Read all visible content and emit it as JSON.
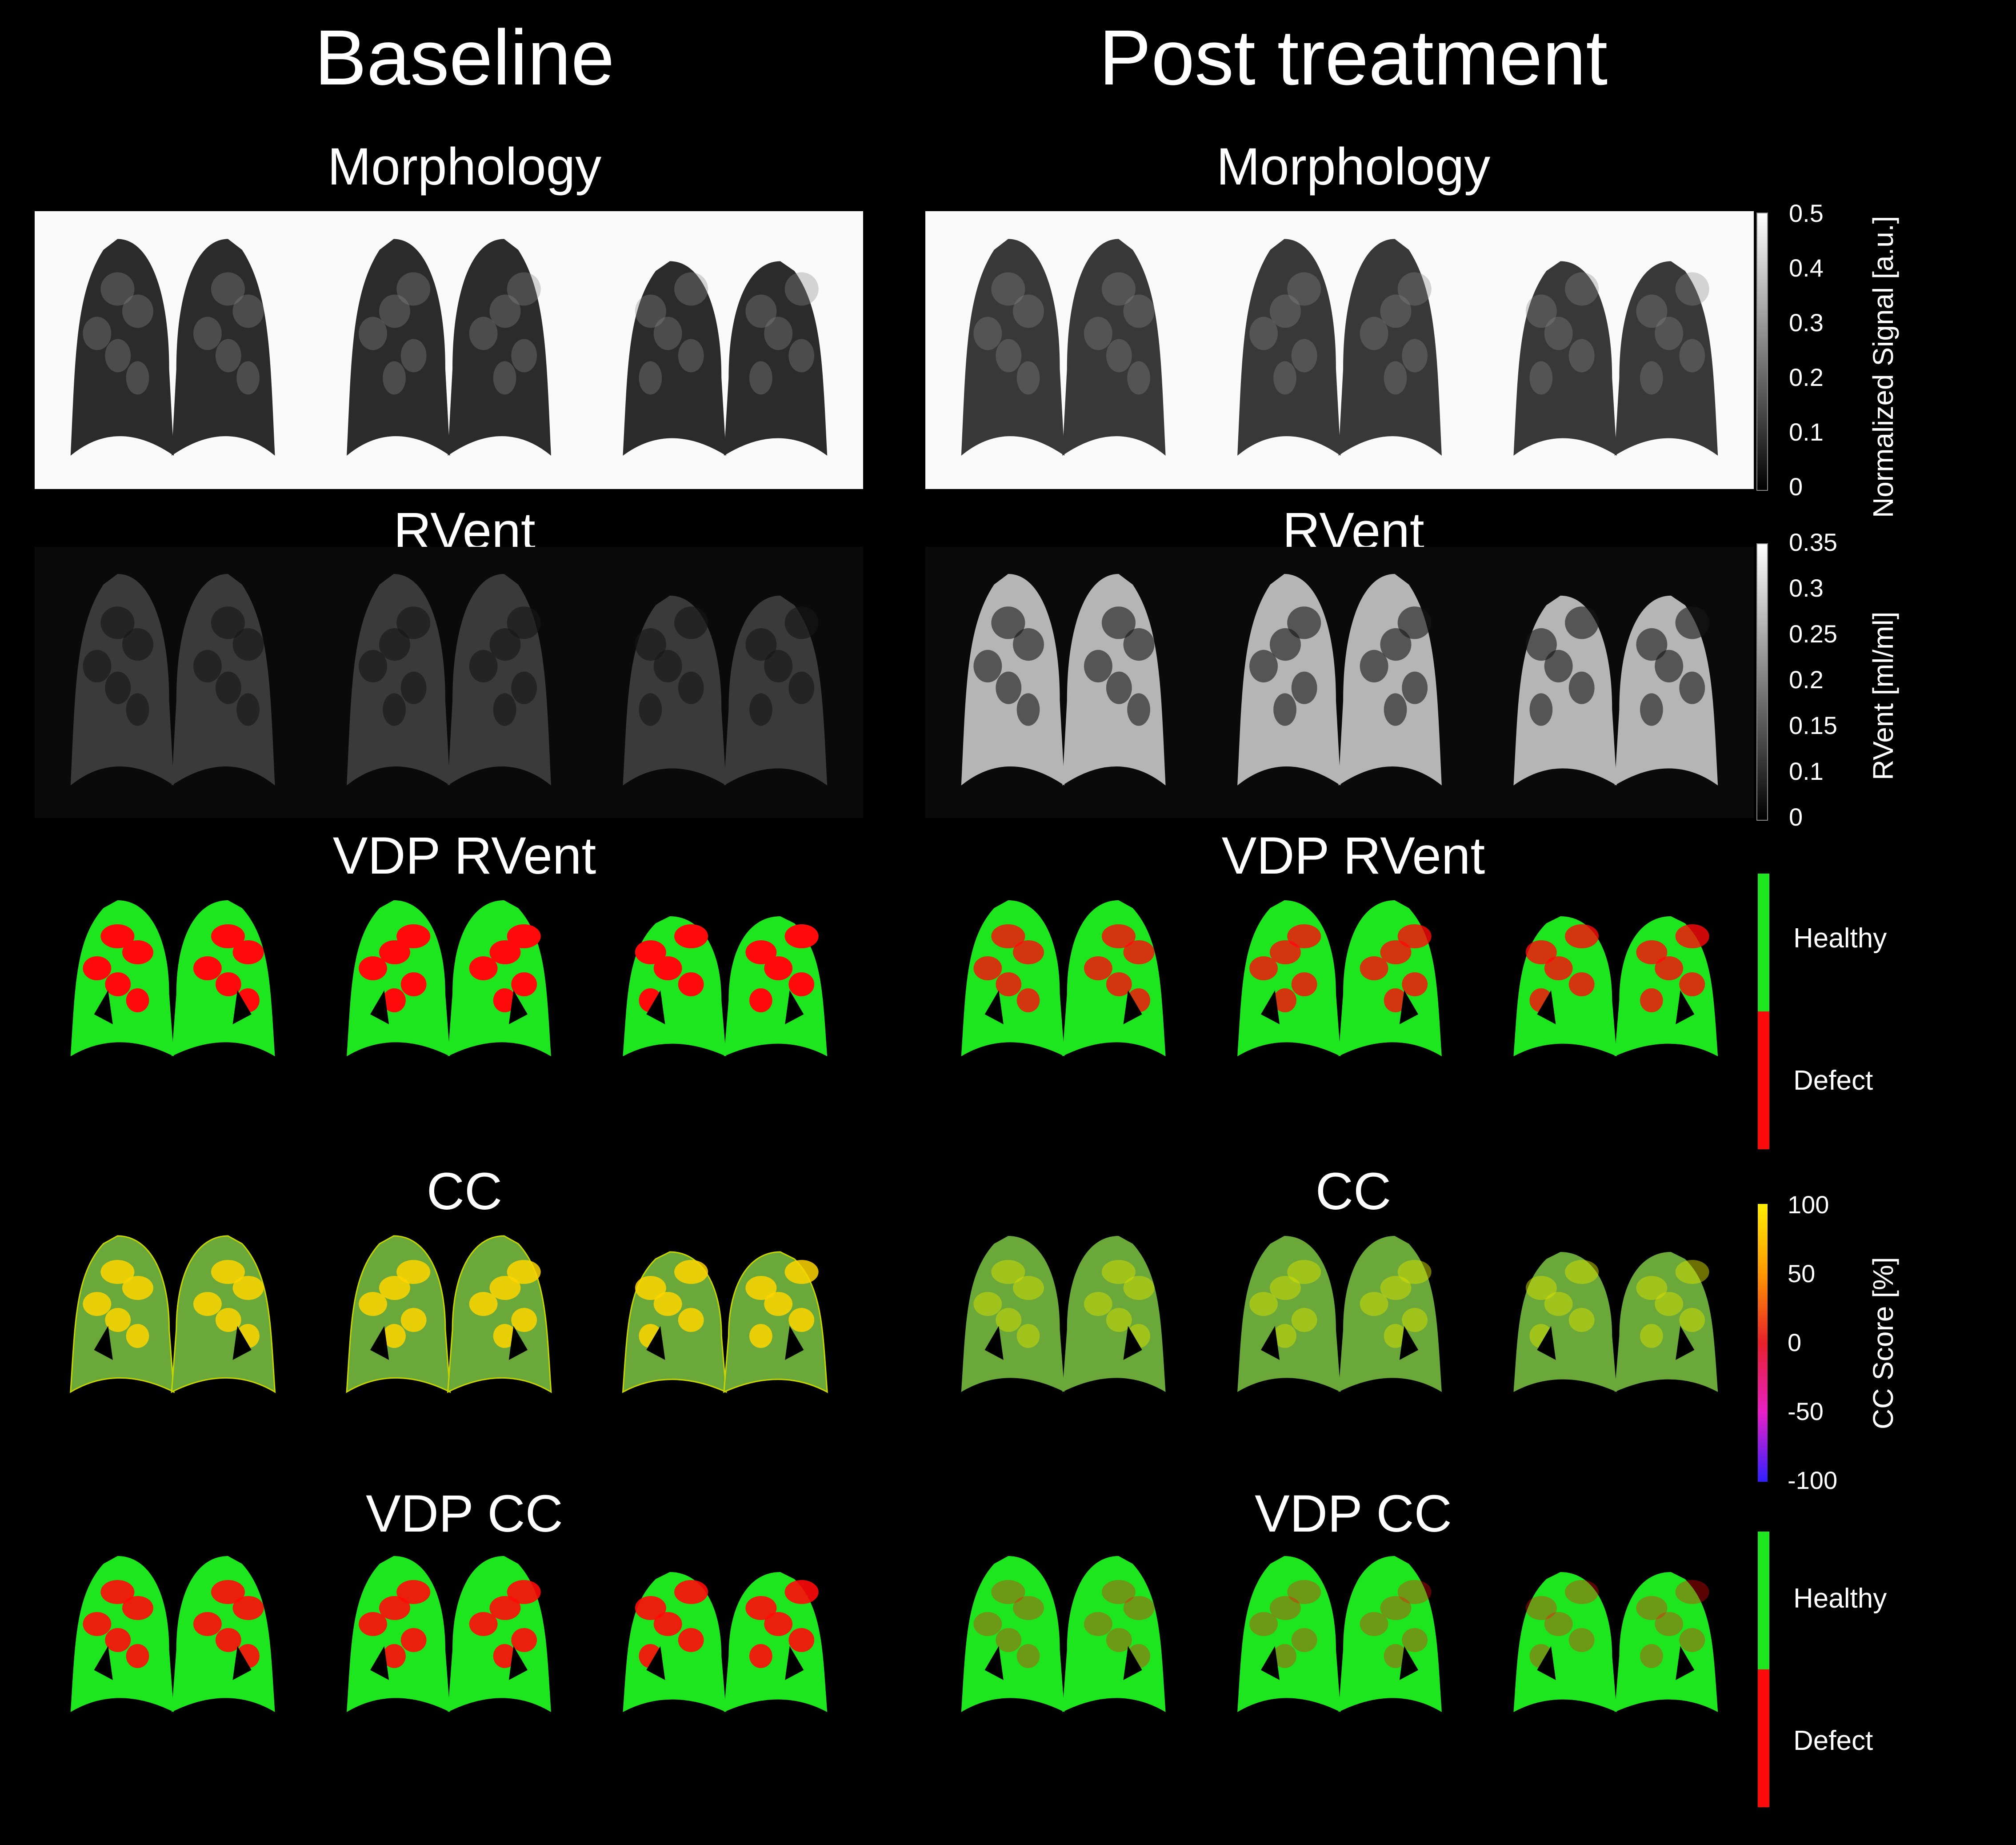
{
  "columns": {
    "baseline": "Baseline",
    "post": "Post treatment"
  },
  "rows": {
    "morphology": "Morphology",
    "rvent": "RVent",
    "vdp_rvent": "VDP RVent",
    "cc": "CC",
    "vdp_cc": "VDP CC"
  },
  "colorbars": {
    "morphology": {
      "title": "Normalized Signal [a.u.]",
      "ticks": [
        "0.5",
        "0.4",
        "0.3",
        "0.2",
        "0.1",
        "0"
      ]
    },
    "rvent": {
      "title": "RVent [ml/ml]",
      "ticks": [
        "0.35",
        "0.3",
        "0.25",
        "0.2",
        "0.15",
        "0.1",
        "0"
      ]
    },
    "vdp_rvent": {
      "healthy": "Healthy",
      "defect": "Defect"
    },
    "cc": {
      "title": "CC Score [%]",
      "ticks": [
        "100",
        "50",
        "0",
        "-50",
        "-100"
      ]
    },
    "vdp_cc": {
      "healthy": "Healthy",
      "defect": "Defect"
    }
  },
  "colors": {
    "healthy": "#1ee61e",
    "defect": "#ff0a0a",
    "cc_base": "#6aa83a"
  }
}
